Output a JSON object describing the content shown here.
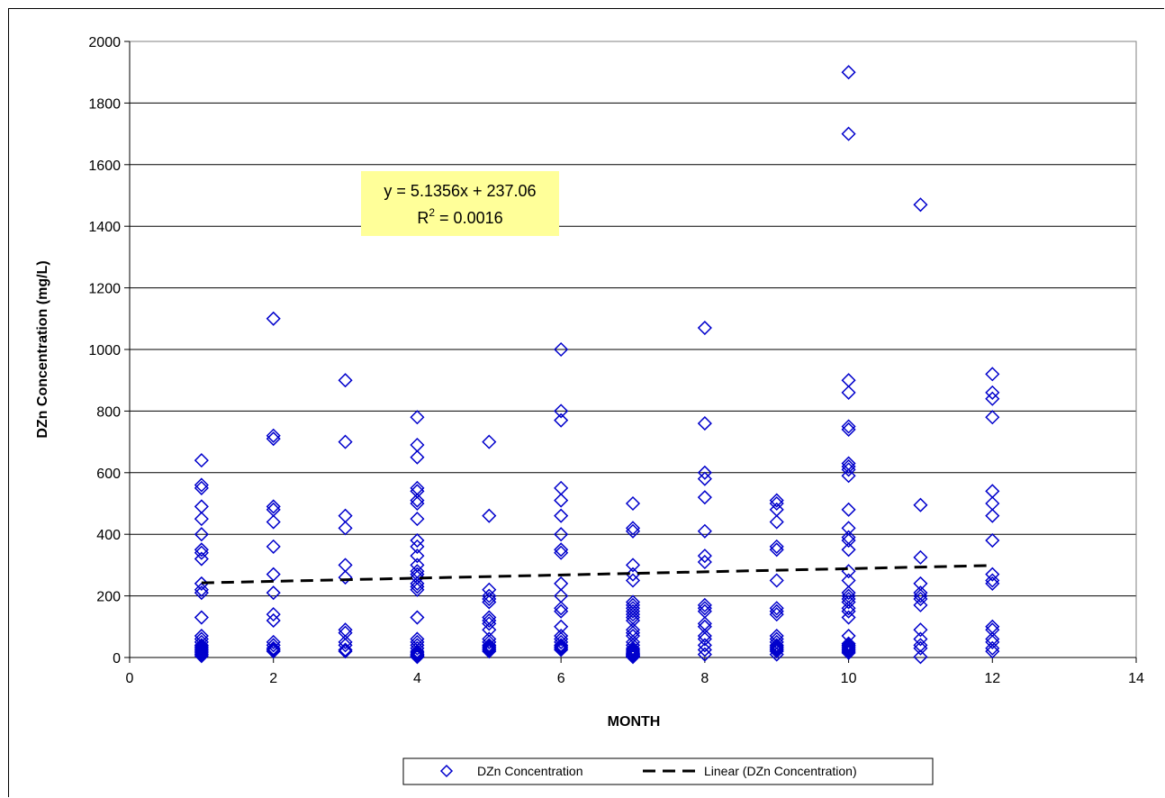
{
  "chart_data": {
    "type": "scatter",
    "xlabel": "MONTH",
    "ylabel": "DZn Concentration  (mg/L)",
    "xlim": [
      0,
      14
    ],
    "ylim": [
      0,
      2000
    ],
    "x_ticks": [
      0,
      2,
      4,
      6,
      8,
      10,
      12,
      14
    ],
    "y_ticks": [
      0,
      200,
      400,
      600,
      800,
      1000,
      1200,
      1400,
      1600,
      1800,
      2000
    ],
    "grid": "horizontal",
    "legend_position": "bottom",
    "colors": {
      "points": "#0000cc",
      "trendline": "#000000",
      "annotation_bg": "#ffff99"
    },
    "series": [
      {
        "name": "DZn Concentration",
        "marker": "diamond",
        "x": [
          1,
          1,
          1,
          1,
          1,
          1,
          1,
          1,
          1,
          1,
          1,
          1,
          1,
          1,
          1,
          1,
          1,
          1,
          1,
          1,
          1,
          1,
          1,
          1,
          2,
          2,
          2,
          2,
          2,
          2,
          2,
          2,
          2,
          2,
          2,
          2,
          2,
          2,
          2,
          2,
          3,
          3,
          3,
          3,
          3,
          3,
          3,
          3,
          3,
          3,
          3,
          3,
          4,
          4,
          4,
          4,
          4,
          4,
          4,
          4,
          4,
          4,
          4,
          4,
          4,
          4,
          4,
          4,
          4,
          4,
          4,
          4,
          4,
          4,
          4,
          4,
          4,
          4,
          4,
          4,
          4,
          5,
          5,
          5,
          5,
          5,
          5,
          5,
          5,
          5,
          5,
          5,
          5,
          5,
          5,
          5,
          5,
          5,
          6,
          6,
          6,
          6,
          6,
          6,
          6,
          6,
          6,
          6,
          6,
          6,
          6,
          6,
          6,
          6,
          6,
          6,
          6,
          6,
          6,
          7,
          7,
          7,
          7,
          7,
          7,
          7,
          7,
          7,
          7,
          7,
          7,
          7,
          7,
          7,
          7,
          7,
          7,
          7,
          7,
          7,
          7,
          7,
          7,
          7,
          7,
          7,
          7,
          8,
          8,
          8,
          8,
          8,
          8,
          8,
          8,
          8,
          8,
          8,
          8,
          8,
          8,
          8,
          8,
          8,
          8,
          9,
          9,
          9,
          9,
          9,
          9,
          9,
          9,
          9,
          9,
          9,
          9,
          9,
          9,
          9,
          9,
          9,
          9,
          9,
          10,
          10,
          10,
          10,
          10,
          10,
          10,
          10,
          10,
          10,
          10,
          10,
          10,
          10,
          10,
          10,
          10,
          10,
          10,
          10,
          10,
          10,
          10,
          10,
          10,
          10,
          10,
          10,
          10,
          10,
          10,
          10,
          11,
          11,
          11,
          11,
          11,
          11,
          11,
          11,
          11,
          11,
          11,
          11,
          11,
          12,
          12,
          12,
          12,
          12,
          12,
          12,
          12,
          12,
          12,
          12,
          12,
          12,
          12,
          12,
          12,
          12
        ],
        "y": [
          640,
          560,
          550,
          490,
          450,
          400,
          350,
          340,
          320,
          240,
          220,
          210,
          130,
          70,
          60,
          50,
          40,
          35,
          30,
          25,
          20,
          15,
          10,
          5,
          1100,
          720,
          710,
          490,
          480,
          440,
          360,
          270,
          210,
          140,
          120,
          50,
          40,
          30,
          25,
          20,
          900,
          700,
          460,
          420,
          300,
          260,
          90,
          80,
          50,
          40,
          25,
          20,
          780,
          690,
          650,
          550,
          540,
          510,
          500,
          450,
          380,
          360,
          330,
          300,
          280,
          270,
          260,
          240,
          230,
          220,
          130,
          60,
          50,
          40,
          30,
          20,
          15,
          10,
          8,
          5,
          2,
          700,
          460,
          220,
          200,
          190,
          180,
          130,
          120,
          110,
          90,
          60,
          50,
          40,
          35,
          30,
          25,
          20,
          1000,
          800,
          770,
          550,
          510,
          460,
          400,
          350,
          340,
          240,
          200,
          160,
          150,
          100,
          70,
          60,
          50,
          40,
          35,
          30,
          25,
          500,
          420,
          410,
          300,
          270,
          250,
          180,
          170,
          160,
          150,
          140,
          130,
          120,
          90,
          80,
          70,
          50,
          40,
          30,
          25,
          20,
          15,
          12,
          10,
          8,
          5,
          3,
          2,
          1070,
          760,
          600,
          580,
          520,
          410,
          330,
          310,
          170,
          160,
          150,
          110,
          100,
          70,
          60,
          40,
          25,
          10,
          510,
          500,
          480,
          440,
          360,
          350,
          250,
          160,
          150,
          140,
          70,
          60,
          50,
          40,
          35,
          30,
          25,
          20,
          10,
          1900,
          1700,
          900,
          860,
          750,
          740,
          630,
          620,
          610,
          590,
          480,
          420,
          390,
          380,
          350,
          280,
          250,
          210,
          200,
          190,
          180,
          160,
          150,
          130,
          70,
          45,
          40,
          35,
          30,
          25,
          20,
          15,
          1470,
          495,
          325,
          240,
          210,
          200,
          190,
          170,
          90,
          60,
          40,
          30,
          2,
          920,
          860,
          840,
          780,
          540,
          500,
          460,
          380,
          270,
          250,
          240,
          100,
          90,
          60,
          50,
          30,
          20
        ]
      }
    ],
    "trendline": {
      "name": "Linear (DZn Concentration)",
      "style": "dashed",
      "slope": 5.1356,
      "intercept": 237.06,
      "x_range": [
        1,
        12
      ]
    },
    "annotation": {
      "equation": "y = 5.1356x + 237.06",
      "r2_label": "R",
      "r2_exponent": "2",
      "r2_value": " = 0.0016"
    },
    "legend": [
      {
        "label": "DZn Concentration",
        "symbol": "diamond"
      },
      {
        "label": "Linear (DZn Concentration)",
        "symbol": "dashed-line"
      }
    ]
  }
}
